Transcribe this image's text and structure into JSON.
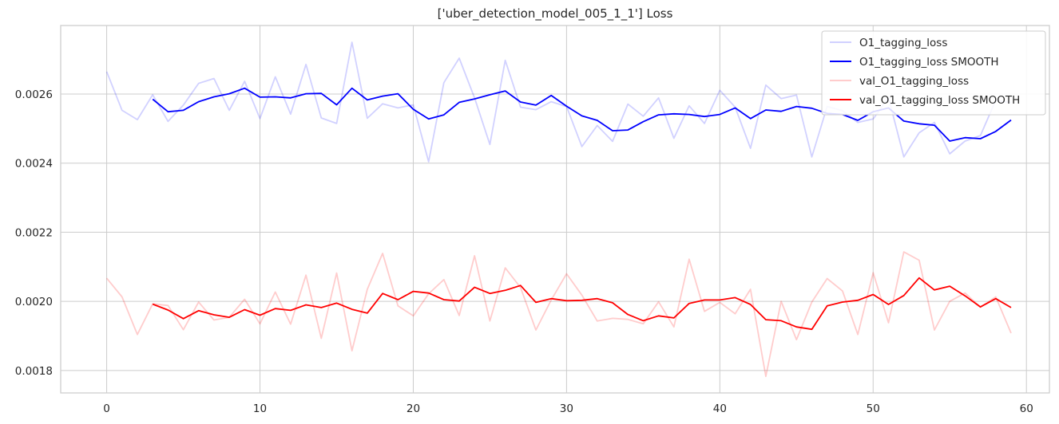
{
  "chart_data": {
    "type": "line",
    "title": "['uber_detection_model_005_1_1'] Loss",
    "xlabel": "",
    "ylabel": "",
    "xlim": [
      -3,
      61.5
    ],
    "ylim": [
      0.001735,
      0.0027985
    ],
    "xticks": [
      0,
      10,
      20,
      30,
      40,
      50,
      60
    ],
    "xtick_labels": [
      "0",
      "10",
      "20",
      "30",
      "40",
      "50",
      "60"
    ],
    "yticks": [
      0.0018,
      0.002,
      0.0022,
      0.0024,
      0.0026
    ],
    "ytick_labels": [
      "0.0018",
      "0.0020",
      "0.0022",
      "0.0024",
      "0.0026"
    ],
    "grid": true,
    "legend_position": "top-right",
    "series": [
      {
        "name": "O1_tagging_loss",
        "color": "#0000ff",
        "opacity": 0.18,
        "x": [
          0,
          1,
          2,
          3,
          4,
          5,
          6,
          7,
          8,
          9,
          10,
          11,
          12,
          13,
          14,
          15,
          16,
          17,
          18,
          19,
          20,
          21,
          22,
          23,
          24,
          25,
          26,
          27,
          28,
          29,
          30,
          31,
          32,
          33,
          34,
          35,
          36,
          37,
          38,
          39,
          40,
          41,
          42,
          43,
          44,
          45,
          46,
          47,
          48,
          49,
          50,
          51,
          52,
          53,
          54,
          55,
          56,
          57,
          58,
          59
        ],
        "y": [
          0.002665,
          0.002553,
          0.002526,
          0.002598,
          0.002521,
          0.002568,
          0.002631,
          0.002645,
          0.002553,
          0.002637,
          0.002529,
          0.00265,
          0.002542,
          0.002686,
          0.002531,
          0.002515,
          0.00275,
          0.00253,
          0.002572,
          0.00256,
          0.002569,
          0.002404,
          0.002633,
          0.002704,
          0.002589,
          0.002454,
          0.002698,
          0.002562,
          0.002555,
          0.002578,
          0.002564,
          0.002448,
          0.002509,
          0.002463,
          0.002571,
          0.002536,
          0.002589,
          0.002472,
          0.002566,
          0.002515,
          0.002611,
          0.002562,
          0.002443,
          0.002626,
          0.002587,
          0.002597,
          0.002418,
          0.002564,
          0.002552,
          0.002518,
          0.002528,
          0.00259,
          0.002418,
          0.002488,
          0.002518,
          0.002427,
          0.002464,
          0.00248,
          0.002582,
          0.002575
        ]
      },
      {
        "name": "O1_tagging_loss SMOOTH",
        "color": "#0000ff",
        "opacity": 1,
        "x": [
          3,
          4,
          5,
          6,
          7,
          8,
          9,
          10,
          11,
          12,
          13,
          14,
          15,
          16,
          17,
          18,
          19,
          20,
          21,
          22,
          23,
          24,
          25,
          26,
          27,
          28,
          29,
          30,
          31,
          32,
          33,
          34,
          35,
          36,
          37,
          38,
          39,
          40,
          41,
          42,
          43,
          44,
          45,
          46,
          47,
          48,
          49,
          50,
          51,
          52,
          53,
          54,
          55,
          56,
          57,
          58,
          59
        ],
        "y": [
          0.002585,
          0.002549,
          0.002553,
          0.002578,
          0.002592,
          0.002601,
          0.002617,
          0.002591,
          0.002592,
          0.002589,
          0.002601,
          0.002602,
          0.002569,
          0.002617,
          0.002583,
          0.002594,
          0.002601,
          0.002556,
          0.002528,
          0.00254,
          0.002576,
          0.002586,
          0.002598,
          0.002609,
          0.002577,
          0.002568,
          0.002596,
          0.002565,
          0.002537,
          0.002524,
          0.002494,
          0.002496,
          0.00252,
          0.00254,
          0.002543,
          0.002541,
          0.002535,
          0.002541,
          0.00256,
          0.002529,
          0.002554,
          0.00255,
          0.002564,
          0.002559,
          0.002544,
          0.002541,
          0.002524,
          0.002549,
          0.00256,
          0.002522,
          0.002514,
          0.00251,
          0.002464,
          0.002474,
          0.002471,
          0.002492,
          0.002525
        ]
      },
      {
        "name": "val_O1_tagging_loss",
        "color": "#ff0000",
        "opacity": 0.2,
        "x": [
          0,
          1,
          2,
          3,
          4,
          5,
          6,
          7,
          8,
          9,
          10,
          11,
          12,
          13,
          14,
          15,
          16,
          17,
          18,
          19,
          20,
          21,
          22,
          23,
          24,
          25,
          26,
          27,
          28,
          29,
          30,
          31,
          32,
          33,
          34,
          35,
          36,
          37,
          38,
          39,
          40,
          41,
          42,
          43,
          44,
          45,
          46,
          47,
          48,
          49,
          50,
          51,
          52,
          53,
          54,
          55,
          56,
          57,
          58,
          59
        ],
        "y": [
          0.002067,
          0.002013,
          0.001904,
          0.001993,
          0.001988,
          0.001918,
          0.001998,
          0.001946,
          0.001954,
          0.002006,
          0.001935,
          0.002027,
          0.001934,
          0.002076,
          0.001893,
          0.002082,
          0.001857,
          0.002035,
          0.002139,
          0.001987,
          0.001958,
          0.002022,
          0.002063,
          0.001959,
          0.002132,
          0.001943,
          0.002097,
          0.00204,
          0.001917,
          0.002004,
          0.00208,
          0.002018,
          0.001943,
          0.001951,
          0.001948,
          0.001935,
          0.001999,
          0.001926,
          0.002122,
          0.001971,
          0.001997,
          0.001964,
          0.002035,
          0.001783,
          0.002,
          0.001889,
          0.001998,
          0.002066,
          0.00203,
          0.001904,
          0.002083,
          0.001938,
          0.002143,
          0.002119,
          0.001917,
          0.002,
          0.002024,
          0.001983,
          0.002013,
          0.001908
        ]
      },
      {
        "name": "val_O1_tagging_loss SMOOTH",
        "color": "#ff0000",
        "opacity": 1,
        "x": [
          3,
          4,
          5,
          6,
          7,
          8,
          9,
          10,
          11,
          12,
          13,
          14,
          15,
          16,
          17,
          18,
          19,
          20,
          21,
          22,
          23,
          24,
          25,
          26,
          27,
          28,
          29,
          30,
          31,
          32,
          33,
          34,
          35,
          36,
          37,
          38,
          39,
          40,
          41,
          42,
          43,
          44,
          45,
          46,
          47,
          48,
          49,
          50,
          51,
          52,
          53,
          54,
          55,
          56,
          57,
          58,
          59
        ],
        "y": [
          0.001992,
          0.001975,
          0.00195,
          0.001973,
          0.001961,
          0.001954,
          0.001976,
          0.00196,
          0.001979,
          0.001974,
          0.00199,
          0.001982,
          0.001995,
          0.001977,
          0.001966,
          0.002023,
          0.002005,
          0.002029,
          0.002024,
          0.002005,
          0.002001,
          0.002041,
          0.002023,
          0.002032,
          0.002046,
          0.001997,
          0.002008,
          0.002002,
          0.002003,
          0.002008,
          0.001996,
          0.001962,
          0.001944,
          0.001958,
          0.001952,
          0.001994,
          0.002004,
          0.002004,
          0.002011,
          0.001991,
          0.001947,
          0.001944,
          0.001926,
          0.001919,
          0.001987,
          0.001998,
          0.002003,
          0.00202,
          0.001991,
          0.002017,
          0.002068,
          0.002033,
          0.002044,
          0.002016,
          0.001984,
          0.002008,
          0.001982
        ]
      }
    ]
  }
}
